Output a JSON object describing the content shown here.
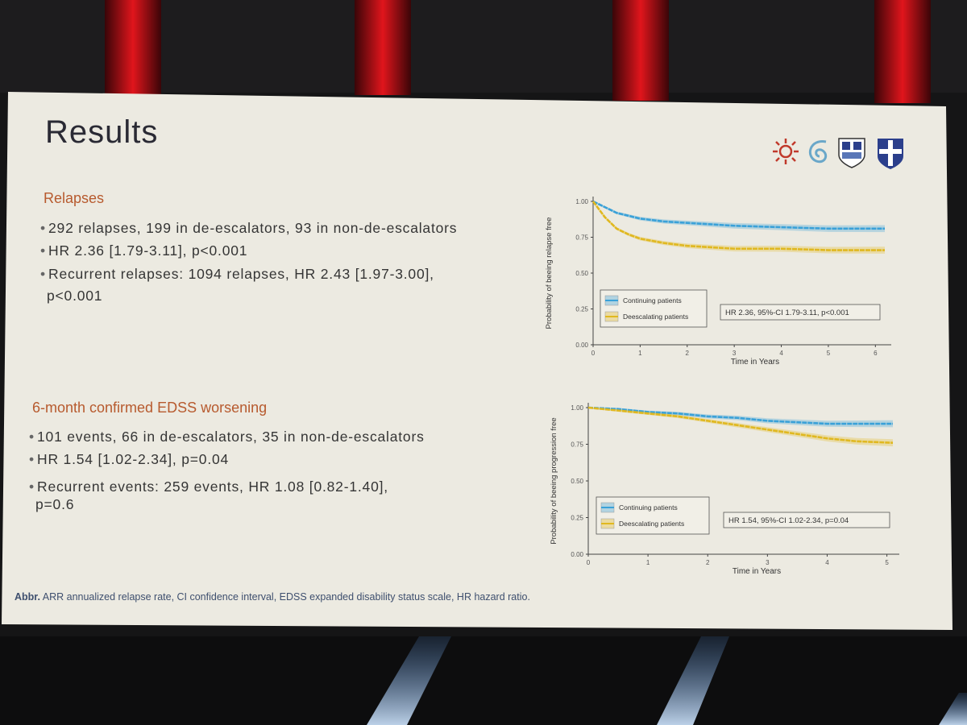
{
  "slide": {
    "title": "Results",
    "sections": [
      {
        "heading": "Relapses",
        "bullets": [
          "292 relapses, 199 in de-escalators, 93 in non-de-escalators",
          "HR 2.36 [1.79-3.11], p<0.001",
          "Recurrent relapses: 1094 relapses, HR 2.43 [1.97-3.00],",
          "p<0.001"
        ]
      },
      {
        "heading": "6-month confirmed EDSS worsening",
        "bullets": [
          "101 events, 66 in de-escalators, 35 in non-de-escalators",
          "HR 1.54 [1.02-2.34], p=0.04",
          "Recurrent events: 259 events, HR 1.08 [0.82-1.40],",
          "p=0.6"
        ]
      }
    ],
    "abbr_label": "Abbr.",
    "abbr_text": "ARR annualized relapse rate, CI confidence interval,  EDSS expanded disability status scale, HR hazard ratio.",
    "logos": [
      "sun-logo",
      "swirl-logo",
      "crest-logo",
      "shield-cross-logo"
    ]
  },
  "colors": {
    "accent": "#b75a2e",
    "continuing": "#3aa1d8",
    "deescalating": "#e0b820",
    "slide_bg": "#eceae1"
  },
  "chart_data": [
    {
      "type": "line",
      "ylabel": "Probability of beeing relapse free",
      "xlabel": "Time in Years",
      "xlim": [
        0,
        6.2
      ],
      "ylim": [
        0,
        1
      ],
      "xticks": [
        "0",
        "1",
        "2",
        "3",
        "4",
        "5",
        "6"
      ],
      "yticks": [
        "0.00",
        "0.25",
        "0.50",
        "0.75",
        "1.00"
      ],
      "grid": false,
      "legend_position": "bottom-left",
      "annotation": "HR 2.36, 95%-CI 1.79-3.11, p<0.001",
      "series": [
        {
          "name": "Continuing patients",
          "x": [
            0,
            0.25,
            0.5,
            0.75,
            1,
            1.5,
            2,
            2.5,
            3,
            4,
            5,
            6.2
          ],
          "y": [
            1.0,
            0.96,
            0.92,
            0.9,
            0.88,
            0.86,
            0.85,
            0.84,
            0.83,
            0.82,
            0.81,
            0.81
          ]
        },
        {
          "name": "Deescalating patients",
          "x": [
            0,
            0.25,
            0.5,
            0.75,
            1,
            1.5,
            2,
            2.5,
            3,
            4,
            5,
            6.2
          ],
          "y": [
            1.0,
            0.89,
            0.81,
            0.77,
            0.74,
            0.71,
            0.69,
            0.68,
            0.67,
            0.67,
            0.66,
            0.66
          ]
        }
      ]
    },
    {
      "type": "line",
      "ylabel": "Probability of beeing progression free",
      "xlabel": "Time in Years",
      "xlim": [
        0,
        5.1
      ],
      "ylim": [
        0,
        1
      ],
      "xticks": [
        "0",
        "1",
        "2",
        "3",
        "4",
        "5"
      ],
      "yticks": [
        "0.00",
        "0.25",
        "0.50",
        "0.75",
        "1.00"
      ],
      "grid": false,
      "legend_position": "bottom-left",
      "annotation": "HR 1.54, 95%-CI 1.02-2.34, p=0.04",
      "series": [
        {
          "name": "Continuing patients",
          "x": [
            0,
            0.5,
            1,
            1.5,
            2,
            2.5,
            3,
            3.5,
            4,
            4.5,
            5.1
          ],
          "y": [
            1.0,
            0.99,
            0.97,
            0.96,
            0.94,
            0.93,
            0.91,
            0.9,
            0.89,
            0.89,
            0.89
          ]
        },
        {
          "name": "Deescalating patients",
          "x": [
            0,
            0.5,
            1,
            1.5,
            2,
            2.5,
            3,
            3.5,
            4,
            4.5,
            5.1
          ],
          "y": [
            1.0,
            0.98,
            0.96,
            0.94,
            0.91,
            0.88,
            0.85,
            0.82,
            0.79,
            0.77,
            0.76
          ]
        }
      ]
    }
  ]
}
